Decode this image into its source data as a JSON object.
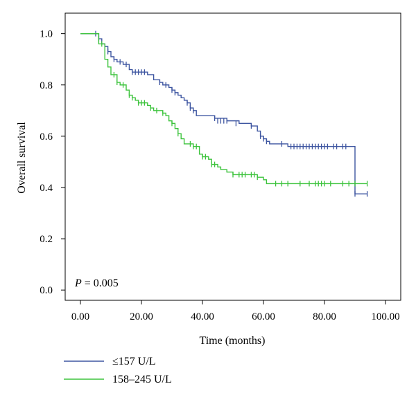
{
  "chart_data": {
    "type": "line",
    "title": "",
    "xlabel": "Time (months)",
    "ylabel": "Overall survival",
    "xlim": [
      -5,
      105
    ],
    "ylim": [
      -0.04,
      1.08
    ],
    "x_ticks": [
      0,
      20,
      40,
      60,
      80,
      100
    ],
    "x_tick_labels": [
      "0.00",
      "20.00",
      "40.00",
      "60.00",
      "80.00",
      "100.00"
    ],
    "y_ticks": [
      0,
      0.2,
      0.4,
      0.6,
      0.8,
      1.0
    ],
    "y_tick_labels": [
      "0.0",
      "0.2",
      "0.4",
      "0.6",
      "0.8",
      "1.0"
    ],
    "grid": false,
    "legend_position": "bottom-left",
    "annotation": {
      "italic": "P",
      "rest": " = 0.005"
    },
    "series": [
      {
        "name": "≤157 U/L",
        "color": "#3d55a0",
        "steps": [
          [
            0,
            1.0
          ],
          [
            6,
            0.98
          ],
          [
            7,
            0.96
          ],
          [
            8,
            0.95
          ],
          [
            9,
            0.93
          ],
          [
            10,
            0.91
          ],
          [
            11,
            0.9
          ],
          [
            12,
            0.89
          ],
          [
            14,
            0.88
          ],
          [
            16,
            0.86
          ],
          [
            17,
            0.85
          ],
          [
            22,
            0.84
          ],
          [
            24,
            0.82
          ],
          [
            26,
            0.81
          ],
          [
            27,
            0.8
          ],
          [
            29,
            0.79
          ],
          [
            30,
            0.78
          ],
          [
            31,
            0.77
          ],
          [
            32,
            0.76
          ],
          [
            33,
            0.75
          ],
          [
            34,
            0.74
          ],
          [
            35,
            0.73
          ],
          [
            36,
            0.71
          ],
          [
            37,
            0.7
          ],
          [
            38,
            0.68
          ],
          [
            44,
            0.67
          ],
          [
            48,
            0.66
          ],
          [
            52,
            0.65
          ],
          [
            56,
            0.64
          ],
          [
            58,
            0.62
          ],
          [
            59,
            0.6
          ],
          [
            60,
            0.59
          ],
          [
            61,
            0.58
          ],
          [
            62,
            0.57
          ],
          [
            66,
            0.57
          ],
          [
            68,
            0.56
          ],
          [
            90,
            0.56
          ],
          [
            90,
            0.375
          ],
          [
            94,
            0.375
          ]
        ],
        "censors": [
          [
            5,
            1.0
          ],
          [
            6,
            0.98
          ],
          [
            9,
            0.93
          ],
          [
            11,
            0.9
          ],
          [
            13,
            0.89
          ],
          [
            15,
            0.88
          ],
          [
            17,
            0.85
          ],
          [
            18,
            0.85
          ],
          [
            19,
            0.85
          ],
          [
            20,
            0.85
          ],
          [
            21,
            0.85
          ],
          [
            26,
            0.81
          ],
          [
            28,
            0.8
          ],
          [
            30,
            0.78
          ],
          [
            31,
            0.77
          ],
          [
            35,
            0.73
          ],
          [
            36,
            0.71
          ],
          [
            37,
            0.7
          ],
          [
            44,
            0.67
          ],
          [
            45,
            0.66
          ],
          [
            46,
            0.66
          ],
          [
            47,
            0.66
          ],
          [
            48,
            0.66
          ],
          [
            51,
            0.65
          ],
          [
            56,
            0.64
          ],
          [
            59,
            0.6
          ],
          [
            60,
            0.59
          ],
          [
            61,
            0.58
          ],
          [
            66,
            0.57
          ],
          [
            69,
            0.56
          ],
          [
            70,
            0.56
          ],
          [
            71,
            0.56
          ],
          [
            72,
            0.56
          ],
          [
            73,
            0.56
          ],
          [
            74,
            0.56
          ],
          [
            75,
            0.56
          ],
          [
            76,
            0.56
          ],
          [
            77,
            0.56
          ],
          [
            78,
            0.56
          ],
          [
            79,
            0.56
          ],
          [
            80,
            0.56
          ],
          [
            81,
            0.56
          ],
          [
            83,
            0.56
          ],
          [
            84,
            0.56
          ],
          [
            86,
            0.56
          ],
          [
            87,
            0.56
          ],
          [
            90,
            0.375
          ],
          [
            94,
            0.375
          ]
        ]
      },
      {
        "name": "158–245 U/L",
        "color": "#3cc33c",
        "steps": [
          [
            0,
            1.0
          ],
          [
            6,
            0.96
          ],
          [
            8,
            0.9
          ],
          [
            9,
            0.87
          ],
          [
            10,
            0.84
          ],
          [
            12,
            0.81
          ],
          [
            13,
            0.8
          ],
          [
            15,
            0.78
          ],
          [
            16,
            0.76
          ],
          [
            17,
            0.75
          ],
          [
            18,
            0.74
          ],
          [
            19,
            0.73
          ],
          [
            22,
            0.72
          ],
          [
            23,
            0.71
          ],
          [
            24,
            0.7
          ],
          [
            27,
            0.69
          ],
          [
            28,
            0.68
          ],
          [
            29,
            0.66
          ],
          [
            30,
            0.65
          ],
          [
            31,
            0.63
          ],
          [
            32,
            0.61
          ],
          [
            33,
            0.59
          ],
          [
            34,
            0.57
          ],
          [
            37,
            0.56
          ],
          [
            39,
            0.53
          ],
          [
            40,
            0.52
          ],
          [
            42,
            0.51
          ],
          [
            43,
            0.49
          ],
          [
            45,
            0.48
          ],
          [
            46,
            0.47
          ],
          [
            48,
            0.46
          ],
          [
            50,
            0.45
          ],
          [
            58,
            0.44
          ],
          [
            60,
            0.43
          ],
          [
            61,
            0.415
          ],
          [
            94,
            0.415
          ]
        ],
        "censors": [
          [
            7,
            0.96
          ],
          [
            11,
            0.84
          ],
          [
            12,
            0.81
          ],
          [
            14,
            0.8
          ],
          [
            16,
            0.76
          ],
          [
            17,
            0.75
          ],
          [
            19,
            0.73
          ],
          [
            20,
            0.73
          ],
          [
            21,
            0.73
          ],
          [
            23,
            0.71
          ],
          [
            25,
            0.7
          ],
          [
            27,
            0.69
          ],
          [
            30,
            0.65
          ],
          [
            32,
            0.61
          ],
          [
            36,
            0.57
          ],
          [
            37,
            0.56
          ],
          [
            38,
            0.56
          ],
          [
            40,
            0.52
          ],
          [
            41,
            0.52
          ],
          [
            43,
            0.49
          ],
          [
            44,
            0.49
          ],
          [
            50,
            0.45
          ],
          [
            52,
            0.45
          ],
          [
            53,
            0.45
          ],
          [
            54,
            0.45
          ],
          [
            56,
            0.45
          ],
          [
            57,
            0.45
          ],
          [
            58,
            0.44
          ],
          [
            64,
            0.415
          ],
          [
            66,
            0.415
          ],
          [
            68,
            0.415
          ],
          [
            72,
            0.415
          ],
          [
            75,
            0.415
          ],
          [
            77,
            0.415
          ],
          [
            78,
            0.415
          ],
          [
            79,
            0.415
          ],
          [
            80,
            0.415
          ],
          [
            82,
            0.415
          ],
          [
            86,
            0.415
          ],
          [
            88,
            0.415
          ],
          [
            90,
            0.415
          ],
          [
            94,
            0.415
          ]
        ]
      }
    ]
  }
}
